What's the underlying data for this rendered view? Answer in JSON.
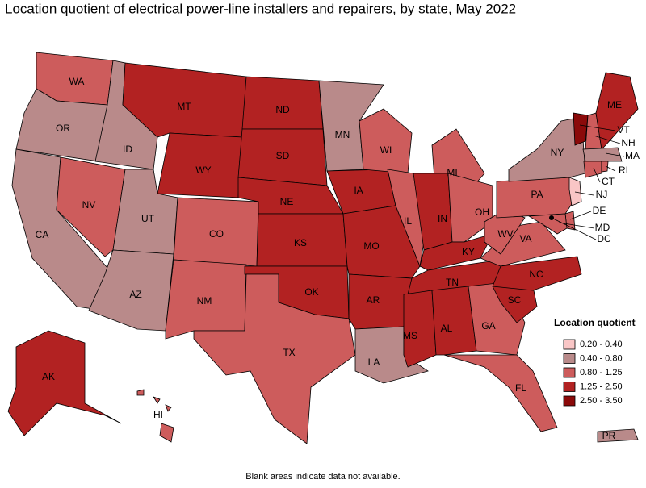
{
  "title": "Location quotient of electrical power-line installers and repairers, by state, May 2022",
  "note": "Blank areas indicate data not available.",
  "legend": {
    "title": "Location quotient",
    "items": [
      {
        "label": "0.20 - 0.40",
        "color": "#f9c6c6"
      },
      {
        "label": "0.40 - 0.80",
        "color": "#b98a8a"
      },
      {
        "label": "0.80 - 1.25",
        "color": "#cd5c5c"
      },
      {
        "label": "1.25 - 2.50",
        "color": "#b22222"
      },
      {
        "label": "2.50 - 3.50",
        "color": "#8b0a0a"
      }
    ]
  },
  "states": [
    {
      "label": "WA",
      "color": "#cd5c5c"
    },
    {
      "label": "OR",
      "color": "#b98a8a"
    },
    {
      "label": "CA",
      "color": "#b98a8a"
    },
    {
      "label": "NV",
      "color": "#cd5c5c"
    },
    {
      "label": "ID",
      "color": "#b98a8a"
    },
    {
      "label": "MT",
      "color": "#b22222"
    },
    {
      "label": "WY",
      "color": "#b22222"
    },
    {
      "label": "UT",
      "color": "#b98a8a"
    },
    {
      "label": "AZ",
      "color": "#b98a8a"
    },
    {
      "label": "CO",
      "color": "#cd5c5c"
    },
    {
      "label": "NM",
      "color": "#cd5c5c"
    },
    {
      "label": "ND",
      "color": "#b22222"
    },
    {
      "label": "SD",
      "color": "#b22222"
    },
    {
      "label": "NE",
      "color": "#b22222"
    },
    {
      "label": "KS",
      "color": "#b22222"
    },
    {
      "label": "OK",
      "color": "#b22222"
    },
    {
      "label": "TX",
      "color": "#cd5c5c"
    },
    {
      "label": "MN",
      "color": "#b98a8a"
    },
    {
      "label": "IA",
      "color": "#b22222"
    },
    {
      "label": "MO",
      "color": "#b22222"
    },
    {
      "label": "AR",
      "color": "#b22222"
    },
    {
      "label": "LA",
      "color": "#b98a8a"
    },
    {
      "label": "WI",
      "color": "#cd5c5c"
    },
    {
      "label": "IL",
      "color": "#cd5c5c"
    },
    {
      "label": "MI",
      "color": "#cd5c5c"
    },
    {
      "label": "IN",
      "color": "#b22222"
    },
    {
      "label": "OH",
      "color": "#cd5c5c"
    },
    {
      "label": "KY",
      "color": "#b22222"
    },
    {
      "label": "TN",
      "color": "#b22222"
    },
    {
      "label": "MS",
      "color": "#b22222"
    },
    {
      "label": "AL",
      "color": "#b22222"
    },
    {
      "label": "GA",
      "color": "#cd5c5c"
    },
    {
      "label": "FL",
      "color": "#cd5c5c"
    },
    {
      "label": "SC",
      "color": "#b22222"
    },
    {
      "label": "NC",
      "color": "#b22222"
    },
    {
      "label": "VA",
      "color": "#cd5c5c"
    },
    {
      "label": "WV",
      "color": "#cd5c5c"
    },
    {
      "label": "PA",
      "color": "#cd5c5c"
    },
    {
      "label": "NY",
      "color": "#b98a8a"
    },
    {
      "label": "VT",
      "color": "#8b0a0a"
    },
    {
      "label": "NH",
      "color": "#cd5c5c"
    },
    {
      "label": "ME",
      "color": "#b22222"
    },
    {
      "label": "MA",
      "color": "#b98a8a"
    },
    {
      "label": "CT",
      "color": "#cd5c5c"
    },
    {
      "label": "RI",
      "color": "#cd5c5c"
    },
    {
      "label": "NJ",
      "color": "#f9c6c6"
    },
    {
      "label": "DE",
      "color": "#cd5c5c"
    },
    {
      "label": "MD",
      "color": "#cd5c5c"
    },
    {
      "label": "DC",
      "color": "#000000"
    },
    {
      "label": "AK",
      "color": "#b22222"
    },
    {
      "label": "HI",
      "color": "#cd5c5c"
    },
    {
      "label": "PR",
      "color": "#b98a8a"
    }
  ]
}
